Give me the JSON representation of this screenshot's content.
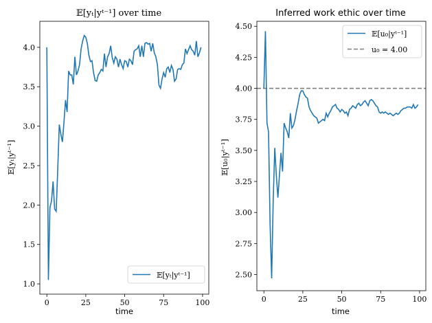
{
  "chart_data": [
    {
      "type": "line",
      "title": "𝔼[yₜ|yᵗ⁻¹] over time",
      "xlabel": "time",
      "ylabel": "𝔼[yₜ|yᵗ⁻¹]",
      "xlim": [
        -4.5,
        104
      ],
      "ylim": [
        0.87,
        4.33
      ],
      "xticks": [
        0,
        25,
        50,
        75,
        100
      ],
      "yticks": [
        1.0,
        1.5,
        2.0,
        2.5,
        3.0,
        3.5,
        4.0
      ],
      "ytick_labels": [
        "1.0",
        "1.5",
        "2.0",
        "2.5",
        "3.0",
        "3.5",
        "4.0"
      ],
      "grid": false,
      "legend_position": "lower right",
      "series": [
        {
          "name": "𝔼[yₜ|yᵗ⁻¹]",
          "color": "#1f77b4",
          "x": [
            0,
            1,
            2,
            3,
            4,
            5,
            6,
            7,
            8,
            9,
            10,
            11,
            12,
            13,
            14,
            15,
            16,
            17,
            18,
            19,
            20,
            21,
            22,
            23,
            24,
            25,
            26,
            27,
            28,
            29,
            30,
            31,
            32,
            33,
            34,
            35,
            36,
            37,
            38,
            39,
            40,
            41,
            42,
            43,
            44,
            45,
            46,
            47,
            48,
            49,
            50,
            51,
            52,
            53,
            54,
            55,
            56,
            57,
            58,
            59,
            60,
            61,
            62,
            63,
            64,
            65,
            66,
            67,
            68,
            69,
            70,
            71,
            72,
            73,
            74,
            75,
            76,
            77,
            78,
            79,
            80,
            81,
            82,
            83,
            84,
            85,
            86,
            87,
            88,
            89,
            90,
            91,
            92,
            93,
            94,
            95,
            96,
            97,
            98,
            99
          ],
          "values": [
            4.0,
            1.05,
            1.97,
            2.05,
            2.3,
            1.95,
            1.92,
            2.45,
            3.02,
            2.9,
            2.8,
            3.05,
            3.33,
            3.18,
            3.7,
            3.65,
            3.65,
            3.53,
            3.88,
            3.65,
            3.7,
            3.78,
            3.98,
            4.08,
            4.15,
            4.13,
            4.05,
            3.9,
            3.82,
            3.83,
            3.68,
            3.58,
            3.57,
            3.65,
            3.68,
            3.72,
            3.7,
            3.92,
            3.75,
            3.88,
            3.92,
            4.02,
            3.87,
            3.8,
            3.88,
            3.85,
            3.75,
            3.85,
            3.78,
            3.73,
            3.83,
            3.82,
            3.75,
            3.85,
            3.83,
            3.78,
            3.95,
            3.97,
            3.98,
            4.02,
            3.88,
            4.02,
            3.88,
            4.05,
            4.06,
            4.04,
            4.05,
            3.95,
            4.05,
            3.93,
            3.88,
            3.78,
            3.52,
            3.48,
            3.6,
            3.68,
            3.62,
            3.73,
            3.75,
            3.68,
            3.77,
            3.72,
            3.57,
            3.6,
            3.72,
            3.73,
            3.72,
            3.78,
            3.8,
            3.98,
            3.92,
            3.97,
            4.02,
            3.97,
            3.95,
            3.9,
            4.08,
            3.88,
            3.93,
            4.0
          ]
        }
      ]
    },
    {
      "type": "line",
      "title": "Inferred work ethic over time",
      "xlabel": "time",
      "ylabel": "𝔼[u₀|yᵗ⁻¹]",
      "xlim": [
        -4.5,
        104
      ],
      "ylim": [
        2.37,
        4.54
      ],
      "xticks": [
        0,
        25,
        50,
        75,
        100
      ],
      "yticks": [
        2.5,
        2.75,
        3.0,
        3.25,
        3.5,
        3.75,
        4.0,
        4.25,
        4.5
      ],
      "ytick_labels": [
        "2.50",
        "2.75",
        "3.00",
        "3.25",
        "3.50",
        "3.75",
        "4.00",
        "4.25",
        "4.50"
      ],
      "grid": false,
      "legend_position": "upper right",
      "series": [
        {
          "name": "𝔼[u₀|yᵗ⁻¹]",
          "color": "#1f77b4",
          "x": [
            0,
            1,
            2,
            3,
            4,
            5,
            6,
            7,
            8,
            9,
            10,
            11,
            12,
            13,
            14,
            15,
            16,
            17,
            18,
            19,
            20,
            21,
            22,
            23,
            24,
            25,
            26,
            27,
            28,
            29,
            30,
            31,
            32,
            33,
            34,
            35,
            36,
            37,
            38,
            39,
            40,
            41,
            42,
            43,
            44,
            45,
            46,
            47,
            48,
            49,
            50,
            51,
            52,
            53,
            54,
            55,
            56,
            57,
            58,
            59,
            60,
            61,
            62,
            63,
            64,
            65,
            66,
            67,
            68,
            69,
            70,
            71,
            72,
            73,
            74,
            75,
            76,
            77,
            78,
            79,
            80,
            81,
            82,
            83,
            84,
            85,
            86,
            87,
            88,
            89,
            90,
            91,
            92,
            93,
            94,
            95,
            96,
            97,
            98,
            99
          ],
          "values": [
            4.0,
            4.46,
            3.72,
            3.65,
            2.9,
            2.47,
            3.1,
            3.52,
            3.3,
            3.12,
            3.3,
            3.48,
            3.33,
            3.72,
            3.68,
            3.65,
            3.6,
            3.8,
            3.68,
            3.7,
            3.75,
            3.82,
            3.88,
            3.95,
            3.98,
            3.98,
            3.95,
            3.93,
            3.92,
            3.85,
            3.82,
            3.8,
            3.78,
            3.77,
            3.76,
            3.72,
            3.73,
            3.74,
            3.75,
            3.74,
            3.8,
            3.77,
            3.8,
            3.82,
            3.85,
            3.86,
            3.87,
            3.84,
            3.83,
            3.81,
            3.83,
            3.82,
            3.8,
            3.81,
            3.78,
            3.83,
            3.84,
            3.86,
            3.85,
            3.84,
            3.87,
            3.88,
            3.86,
            3.87,
            3.89,
            3.9,
            3.88,
            3.86,
            3.9,
            3.91,
            3.9,
            3.88,
            3.86,
            3.85,
            3.81,
            3.8,
            3.81,
            3.8,
            3.81,
            3.8,
            3.79,
            3.8,
            3.79,
            3.78,
            3.79,
            3.8,
            3.79,
            3.8,
            3.82,
            3.83,
            3.84,
            3.84,
            3.85,
            3.85,
            3.85,
            3.84,
            3.87,
            3.84,
            3.85,
            3.87
          ]
        },
        {
          "name": "u₀ = 4.00",
          "color": "#7f7f7f",
          "style": "dashed",
          "values": [
            4.0
          ]
        }
      ]
    }
  ]
}
